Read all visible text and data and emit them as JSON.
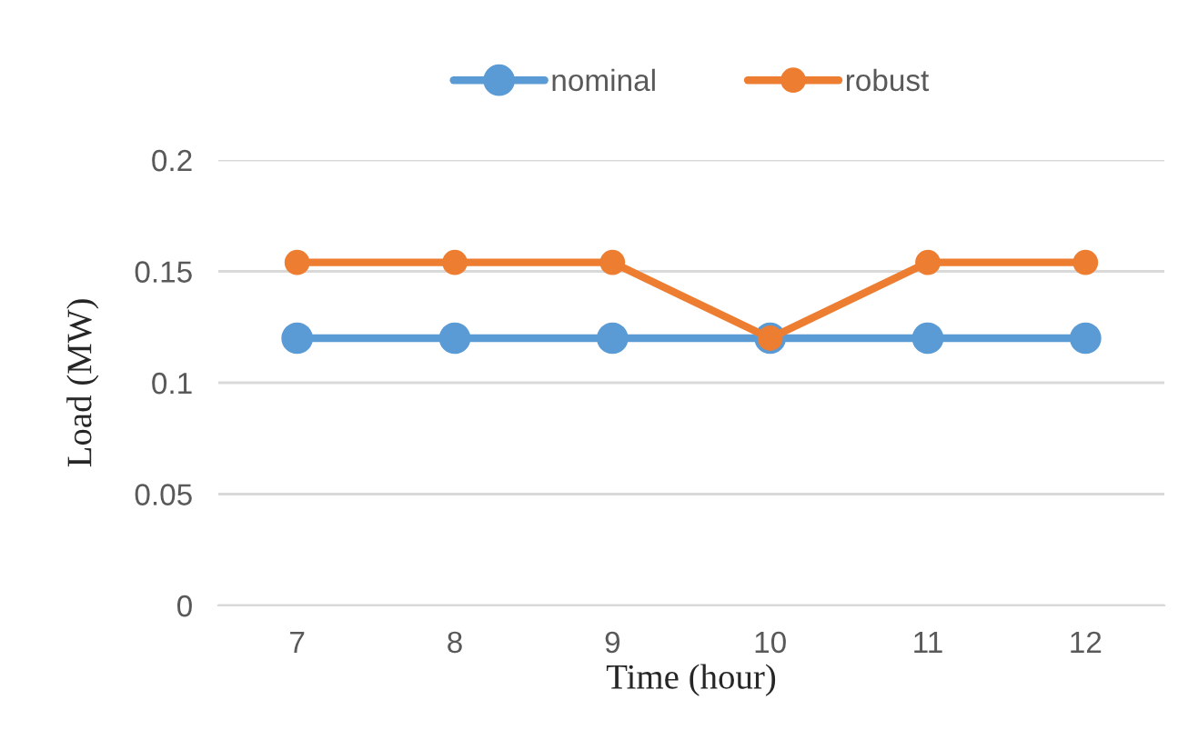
{
  "chart_data": {
    "type": "line",
    "xlabel": "Time (hour)",
    "ylabel": "Load (MW)",
    "categories": [
      "7",
      "8",
      "9",
      "10",
      "11",
      "12"
    ],
    "series": [
      {
        "name": "nominal",
        "color": "#5b9bd5",
        "values": [
          0.12,
          0.12,
          0.12,
          0.12,
          0.12,
          0.12
        ]
      },
      {
        "name": "robust",
        "color": "#ed7d31",
        "values": [
          0.154,
          0.154,
          0.154,
          0.12,
          0.154,
          0.154
        ]
      }
    ],
    "ylim": [
      0,
      0.2
    ],
    "yticks": [
      0,
      0.05,
      0.1,
      0.15,
      0.2
    ],
    "grid": "y",
    "legend": "top",
    "marker": "circle",
    "line_style": "solid"
  }
}
